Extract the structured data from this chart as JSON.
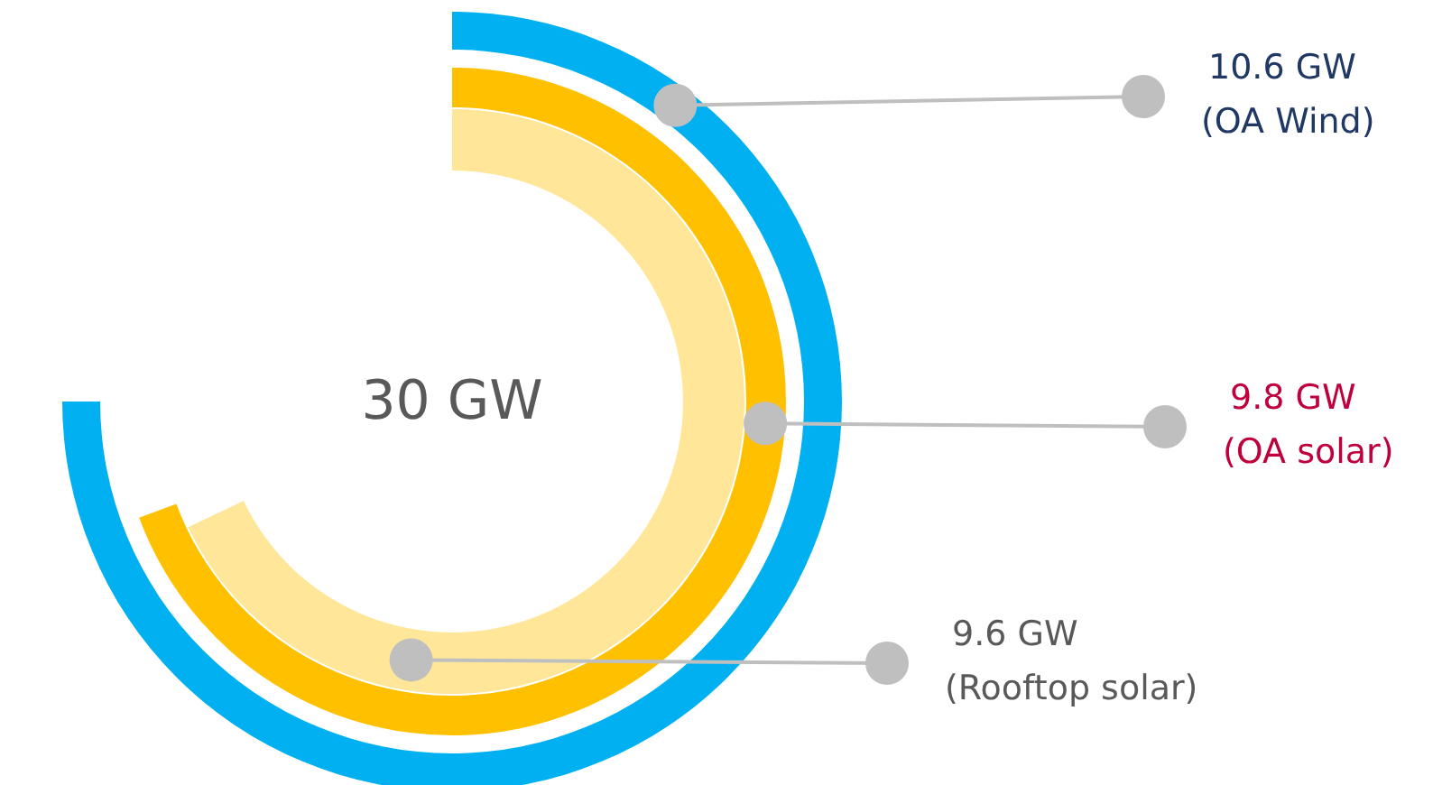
{
  "chart_data": {
    "type": "other",
    "annotations": [
      "30 GW"
    ],
    "categories": [
      "(OA Wind)",
      "(OA solar)",
      "(Rooftop solar)"
    ],
    "values": [
      10.6,
      9.8,
      9.6
    ],
    "value_labels": [
      "10.6 GW",
      "9.8 GW",
      "9.6 GW"
    ],
    "colors": [
      "#00b0f0",
      "#ffc000",
      "#ffe699"
    ]
  }
}
